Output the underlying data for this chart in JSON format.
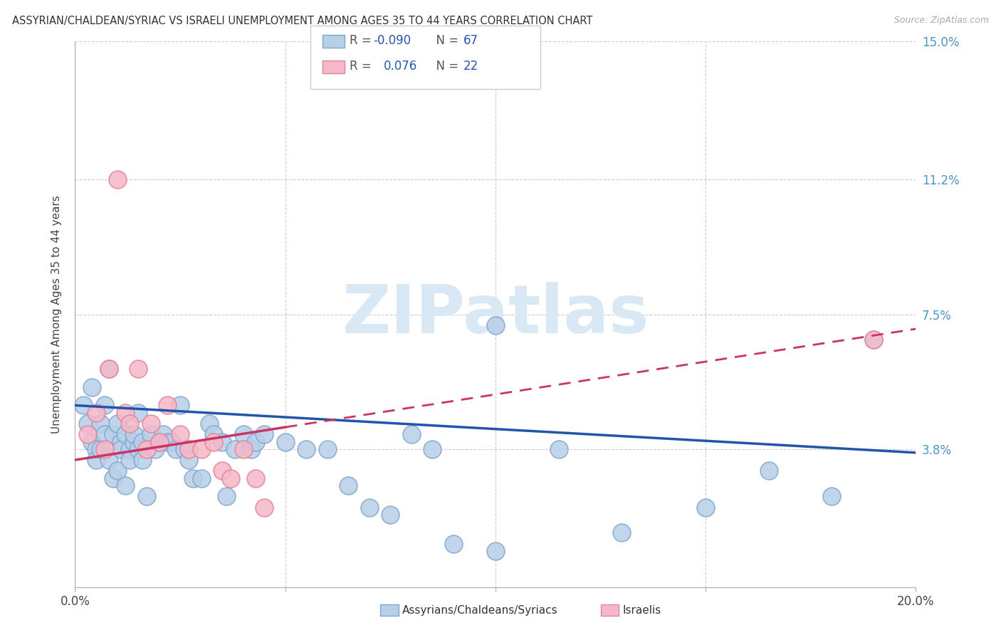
{
  "title": "ASSYRIAN/CHALDEAN/SYRIAC VS ISRAELI UNEMPLOYMENT AMONG AGES 35 TO 44 YEARS CORRELATION CHART",
  "source": "Source: ZipAtlas.com",
  "ylabel": "Unemployment Among Ages 35 to 44 years",
  "xlim": [
    0.0,
    0.2
  ],
  "ylim": [
    0.0,
    0.15
  ],
  "xtick_positions": [
    0.0,
    0.05,
    0.1,
    0.15,
    0.2
  ],
  "xtick_labels": [
    "0.0%",
    "",
    "",
    "",
    "20.0%"
  ],
  "ytick_positions": [
    0.0,
    0.038,
    0.075,
    0.112,
    0.15
  ],
  "ytick_labels_right": [
    "",
    "3.8%",
    "7.5%",
    "11.2%",
    "15.0%"
  ],
  "legend_R_blue": "-0.090",
  "legend_N_blue": "67",
  "legend_R_pink": "0.076",
  "legend_N_pink": "22",
  "blue_scatter_color": "#b8cfe8",
  "blue_scatter_edge": "#7da8d0",
  "pink_scatter_color": "#f5b8c8",
  "pink_scatter_edge": "#e88099",
  "blue_line_color": "#2255aa",
  "pink_line_color": "#cc3366",
  "grid_color": "#cccccc",
  "blue_x": [
    0.002,
    0.003,
    0.004,
    0.004,
    0.005,
    0.005,
    0.006,
    0.006,
    0.007,
    0.007,
    0.008,
    0.008,
    0.009,
    0.009,
    0.01,
    0.01,
    0.011,
    0.011,
    0.012,
    0.012,
    0.013,
    0.013,
    0.014,
    0.014,
    0.015,
    0.015,
    0.016,
    0.016,
    0.017,
    0.018,
    0.019,
    0.02,
    0.021,
    0.022,
    0.023,
    0.024,
    0.025,
    0.026,
    0.027,
    0.028,
    0.03,
    0.032,
    0.033,
    0.035,
    0.036,
    0.038,
    0.04,
    0.042,
    0.043,
    0.045,
    0.05,
    0.055,
    0.06,
    0.065,
    0.07,
    0.075,
    0.08,
    0.085,
    0.09,
    0.1,
    0.115,
    0.13,
    0.15,
    0.165,
    0.18,
    0.19,
    0.1
  ],
  "blue_y": [
    0.05,
    0.045,
    0.04,
    0.055,
    0.038,
    0.035,
    0.038,
    0.045,
    0.042,
    0.05,
    0.06,
    0.035,
    0.03,
    0.042,
    0.045,
    0.032,
    0.04,
    0.038,
    0.042,
    0.028,
    0.038,
    0.035,
    0.04,
    0.042,
    0.048,
    0.038,
    0.04,
    0.035,
    0.025,
    0.042,
    0.038,
    0.04,
    0.042,
    0.04,
    0.04,
    0.038,
    0.05,
    0.038,
    0.035,
    0.03,
    0.03,
    0.045,
    0.042,
    0.04,
    0.025,
    0.038,
    0.042,
    0.038,
    0.04,
    0.042,
    0.04,
    0.038,
    0.038,
    0.028,
    0.022,
    0.02,
    0.042,
    0.038,
    0.012,
    0.01,
    0.038,
    0.015,
    0.022,
    0.032,
    0.025,
    0.068,
    0.072
  ],
  "pink_x": [
    0.003,
    0.005,
    0.007,
    0.008,
    0.01,
    0.012,
    0.013,
    0.015,
    0.017,
    0.018,
    0.02,
    0.022,
    0.025,
    0.027,
    0.03,
    0.033,
    0.035,
    0.037,
    0.04,
    0.043,
    0.045,
    0.19
  ],
  "pink_y": [
    0.042,
    0.048,
    0.038,
    0.06,
    0.112,
    0.048,
    0.045,
    0.06,
    0.038,
    0.045,
    0.04,
    0.05,
    0.042,
    0.038,
    0.038,
    0.04,
    0.032,
    0.03,
    0.038,
    0.03,
    0.022,
    0.068
  ]
}
